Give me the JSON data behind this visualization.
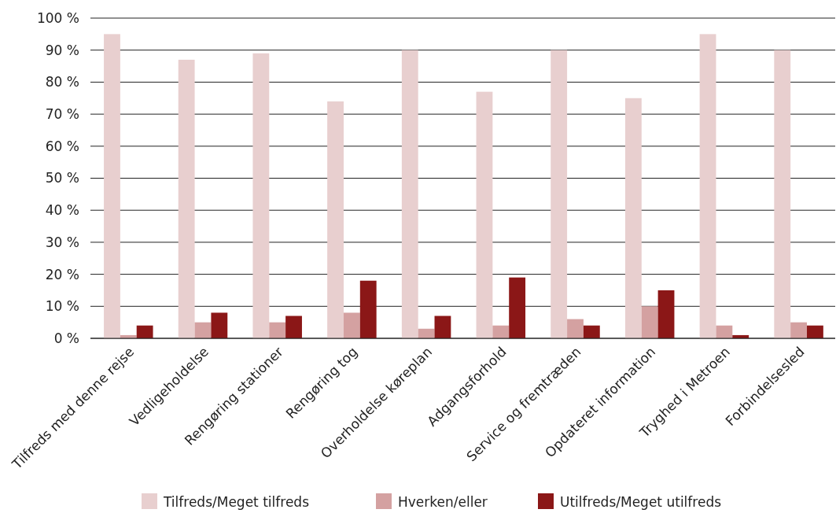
{
  "chart_data": {
    "type": "bar",
    "categories": [
      "Tilfreds med denne rejse",
      "Vedligeholdelse",
      "Rengøring stationer",
      "Rengøring tog",
      "Overholdelse køreplan",
      "Adgangsforhold",
      "Service og fremtræden",
      "Opdateret information",
      "Tryghed i Metroen",
      "Forbindelsesled"
    ],
    "series": [
      {
        "name": "Tilfreds/Meget tilfreds",
        "color": "#e8cfcf",
        "values": [
          95,
          87,
          89,
          74,
          90,
          77,
          90,
          75,
          95,
          90
        ]
      },
      {
        "name": "Hverken/eller",
        "color": "#d4a1a1",
        "values": [
          1,
          5,
          5,
          8,
          3,
          4,
          6,
          10,
          4,
          5
        ]
      },
      {
        "name": "Utilfreds/Meget utilfreds",
        "color": "#8b1717",
        "values": [
          4,
          8,
          7,
          18,
          7,
          19,
          4,
          15,
          1,
          4
        ]
      }
    ],
    "ylim": [
      0,
      100
    ],
    "yticks": [
      {
        "value": 0,
        "label": "0 %"
      },
      {
        "value": 10,
        "label": "10 %"
      },
      {
        "value": 20,
        "label": "20 %"
      },
      {
        "value": 30,
        "label": "30 %"
      },
      {
        "value": 40,
        "label": "40 %"
      },
      {
        "value": 50,
        "label": "50 %"
      },
      {
        "value": 60,
        "label": "60 %"
      },
      {
        "value": 70,
        "label": "70 %"
      },
      {
        "value": 80,
        "label": "80 %"
      },
      {
        "value": 90,
        "label": "90 %"
      },
      {
        "value": 100,
        "label": "100 %"
      }
    ],
    "grid": "y",
    "legend": "bottom"
  }
}
